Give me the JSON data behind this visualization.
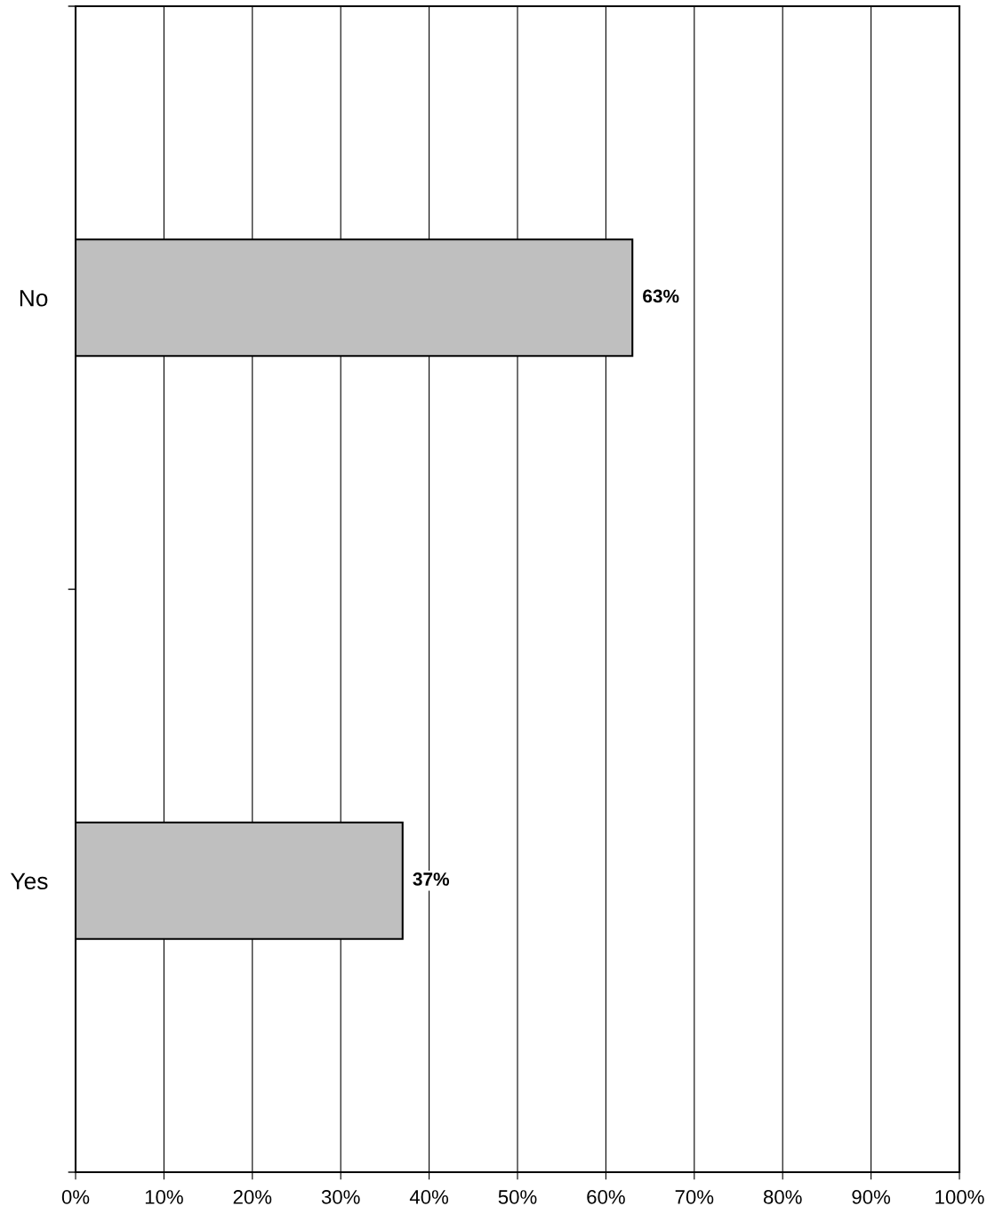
{
  "chart_data": {
    "type": "bar",
    "orientation": "horizontal",
    "categories": [
      "No",
      "Yes"
    ],
    "values": [
      63,
      37
    ],
    "color": "#bfbfbf",
    "value_labels": [
      "63%",
      "37%"
    ],
    "xlim": [
      0,
      100
    ],
    "xticks": [
      {
        "value": 0,
        "label": "0%"
      },
      {
        "value": 10,
        "label": "10%"
      },
      {
        "value": 20,
        "label": "20%"
      },
      {
        "value": 30,
        "label": "30%"
      },
      {
        "value": 40,
        "label": "40%"
      },
      {
        "value": 50,
        "label": "50%"
      },
      {
        "value": 60,
        "label": "60%"
      },
      {
        "value": 70,
        "label": "70%"
      },
      {
        "value": 80,
        "label": "80%"
      },
      {
        "value": 90,
        "label": "90%"
      },
      {
        "value": 100,
        "label": "100%"
      }
    ],
    "grid": "x",
    "legend": false
  }
}
